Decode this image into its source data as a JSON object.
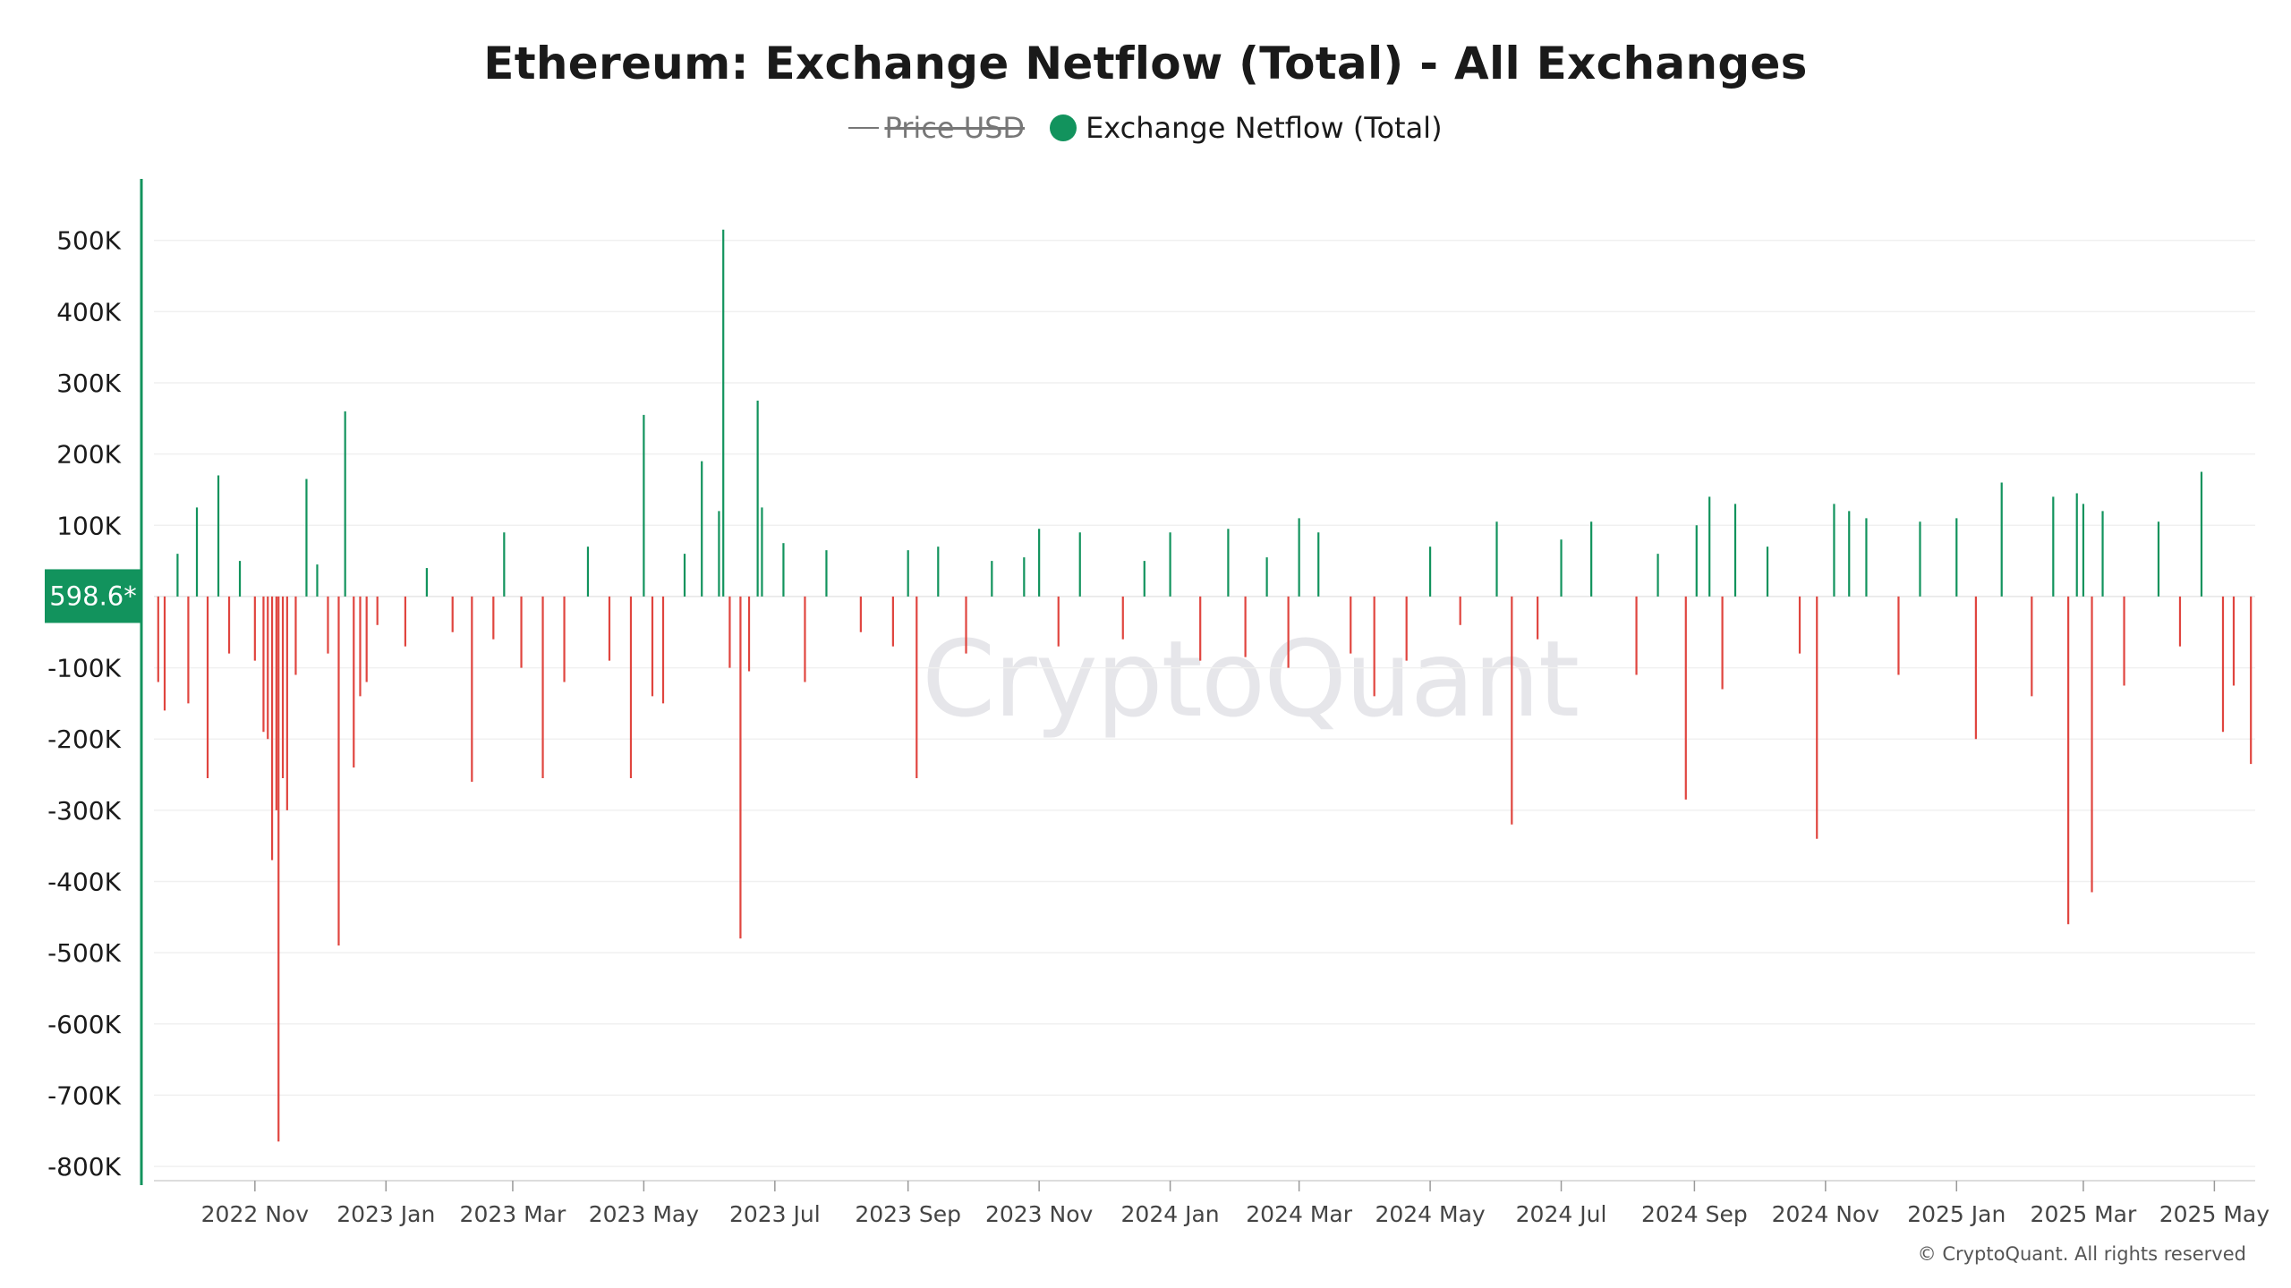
{
  "title": "Ethereum: Exchange Netflow (Total) - All Exchanges",
  "legend": {
    "price_label": "Price USD",
    "netflow_label": "Exchange Netflow (Total)"
  },
  "watermark": "CryptoQuant",
  "copyright": "© CryptoQuant. All rights reserved",
  "colors": {
    "inflow": "#12935d",
    "outflow": "#e0453f",
    "axis": "#12935d"
  },
  "chart_data": {
    "type": "bar",
    "ylim": [
      -820000,
      580000
    ],
    "y_ticks": [
      {
        "value": 500000,
        "label": "500K"
      },
      {
        "value": 400000,
        "label": "400K"
      },
      {
        "value": 300000,
        "label": "300K"
      },
      {
        "value": 200000,
        "label": "200K"
      },
      {
        "value": 100000,
        "label": "100K"
      },
      {
        "value": -100000,
        "label": "-100K"
      },
      {
        "value": -200000,
        "label": "-200K"
      },
      {
        "value": -300000,
        "label": "-300K"
      },
      {
        "value": -400000,
        "label": "-400K"
      },
      {
        "value": -500000,
        "label": "-500K"
      },
      {
        "value": -600000,
        "label": "-600K"
      },
      {
        "value": -700000,
        "label": "-700K"
      },
      {
        "value": -800000,
        "label": "-800K"
      }
    ],
    "x_range": [
      "2022-09-15",
      "2025-05-20"
    ],
    "x_ticks": [
      {
        "date": "2022-11-01",
        "label": "2022 Nov"
      },
      {
        "date": "2023-01-01",
        "label": "2023 Jan"
      },
      {
        "date": "2023-03-01",
        "label": "2023 Mar"
      },
      {
        "date": "2023-05-01",
        "label": "2023 May"
      },
      {
        "date": "2023-07-01",
        "label": "2023 Jul"
      },
      {
        "date": "2023-09-01",
        "label": "2023 Sep"
      },
      {
        "date": "2023-11-01",
        "label": "2023 Nov"
      },
      {
        "date": "2024-01-01",
        "label": "2024 Jan"
      },
      {
        "date": "2024-03-01",
        "label": "2024 Mar"
      },
      {
        "date": "2024-05-01",
        "label": "2024 May"
      },
      {
        "date": "2024-07-01",
        "label": "2024 Jul"
      },
      {
        "date": "2024-09-01",
        "label": "2024 Sep"
      },
      {
        "date": "2024-11-01",
        "label": "2024 Nov"
      },
      {
        "date": "2025-01-01",
        "label": "2025 Jan"
      },
      {
        "date": "2025-03-01",
        "label": "2025 Mar"
      },
      {
        "date": "2025-05-01",
        "label": "2025 May"
      }
    ],
    "current_value_label": "598.6*",
    "current_value": 598.6,
    "series": [
      {
        "name": "Exchange Netflow (Total)",
        "points": [
          [
            "2022-09-17",
            -120000
          ],
          [
            "2022-09-20",
            -160000
          ],
          [
            "2022-09-26",
            60000
          ],
          [
            "2022-10-01",
            -150000
          ],
          [
            "2022-10-05",
            125000
          ],
          [
            "2022-10-10",
            -255000
          ],
          [
            "2022-10-15",
            170000
          ],
          [
            "2022-10-20",
            -80000
          ],
          [
            "2022-10-25",
            50000
          ],
          [
            "2022-11-01",
            -90000
          ],
          [
            "2022-11-05",
            -190000
          ],
          [
            "2022-11-07",
            -200000
          ],
          [
            "2022-11-09",
            -370000
          ],
          [
            "2022-11-11",
            -300000
          ],
          [
            "2022-11-12",
            -765000
          ],
          [
            "2022-11-14",
            -255000
          ],
          [
            "2022-11-16",
            -300000
          ],
          [
            "2022-11-20",
            -110000
          ],
          [
            "2022-11-25",
            165000
          ],
          [
            "2022-11-30",
            45000
          ],
          [
            "2022-12-05",
            -80000
          ],
          [
            "2022-12-10",
            -490000
          ],
          [
            "2022-12-13",
            260000
          ],
          [
            "2022-12-17",
            -240000
          ],
          [
            "2022-12-20",
            -140000
          ],
          [
            "2022-12-23",
            -120000
          ],
          [
            "2022-12-28",
            -40000
          ],
          [
            "2023-01-10",
            -70000
          ],
          [
            "2023-01-20",
            40000
          ],
          [
            "2023-02-01",
            -50000
          ],
          [
            "2023-02-10",
            -260000
          ],
          [
            "2023-02-20",
            -60000
          ],
          [
            "2023-02-25",
            90000
          ],
          [
            "2023-03-05",
            -100000
          ],
          [
            "2023-03-15",
            -255000
          ],
          [
            "2023-03-25",
            -120000
          ],
          [
            "2023-04-05",
            70000
          ],
          [
            "2023-04-15",
            -90000
          ],
          [
            "2023-04-25",
            -255000
          ],
          [
            "2023-05-01",
            255000
          ],
          [
            "2023-05-05",
            -140000
          ],
          [
            "2023-05-10",
            -150000
          ],
          [
            "2023-05-20",
            60000
          ],
          [
            "2023-05-28",
            190000
          ],
          [
            "2023-06-05",
            120000
          ],
          [
            "2023-06-07",
            515000
          ],
          [
            "2023-06-10",
            -100000
          ],
          [
            "2023-06-15",
            -480000
          ],
          [
            "2023-06-19",
            -105000
          ],
          [
            "2023-06-23",
            275000
          ],
          [
            "2023-06-25",
            125000
          ],
          [
            "2023-07-05",
            75000
          ],
          [
            "2023-07-15",
            -120000
          ],
          [
            "2023-07-25",
            65000
          ],
          [
            "2023-08-10",
            -50000
          ],
          [
            "2023-08-25",
            -70000
          ],
          [
            "2023-09-01",
            65000
          ],
          [
            "2023-09-05",
            -255000
          ],
          [
            "2023-09-15",
            70000
          ],
          [
            "2023-09-28",
            -80000
          ],
          [
            "2023-10-10",
            50000
          ],
          [
            "2023-10-25",
            55000
          ],
          [
            "2023-11-01",
            95000
          ],
          [
            "2023-11-10",
            -70000
          ],
          [
            "2023-11-20",
            90000
          ],
          [
            "2023-12-10",
            -60000
          ],
          [
            "2023-12-20",
            50000
          ],
          [
            "2024-01-01",
            90000
          ],
          [
            "2024-01-15",
            -90000
          ],
          [
            "2024-01-28",
            95000
          ],
          [
            "2024-02-05",
            -85000
          ],
          [
            "2024-02-15",
            55000
          ],
          [
            "2024-02-25",
            -100000
          ],
          [
            "2024-03-01",
            110000
          ],
          [
            "2024-03-10",
            90000
          ],
          [
            "2024-03-25",
            -80000
          ],
          [
            "2024-04-05",
            -140000
          ],
          [
            "2024-04-20",
            -90000
          ],
          [
            "2024-05-01",
            70000
          ],
          [
            "2024-05-15",
            -40000
          ],
          [
            "2024-06-01",
            105000
          ],
          [
            "2024-06-08",
            -320000
          ],
          [
            "2024-06-20",
            -60000
          ],
          [
            "2024-07-01",
            80000
          ],
          [
            "2024-07-15",
            105000
          ],
          [
            "2024-08-05",
            -110000
          ],
          [
            "2024-08-15",
            60000
          ],
          [
            "2024-08-28",
            -285000
          ],
          [
            "2024-09-02",
            100000
          ],
          [
            "2024-09-08",
            140000
          ],
          [
            "2024-09-14",
            -130000
          ],
          [
            "2024-09-20",
            130000
          ],
          [
            "2024-10-05",
            70000
          ],
          [
            "2024-10-20",
            -80000
          ],
          [
            "2024-10-28",
            -340000
          ],
          [
            "2024-11-05",
            130000
          ],
          [
            "2024-11-12",
            120000
          ],
          [
            "2024-11-20",
            110000
          ],
          [
            "2024-12-05",
            -110000
          ],
          [
            "2024-12-15",
            105000
          ],
          [
            "2025-01-01",
            110000
          ],
          [
            "2025-01-10",
            -200000
          ],
          [
            "2025-01-22",
            160000
          ],
          [
            "2025-02-05",
            -140000
          ],
          [
            "2025-02-15",
            140000
          ],
          [
            "2025-02-22",
            -460000
          ],
          [
            "2025-02-26",
            145000
          ],
          [
            "2025-03-01",
            130000
          ],
          [
            "2025-03-05",
            -415000
          ],
          [
            "2025-03-10",
            120000
          ],
          [
            "2025-03-20",
            -125000
          ],
          [
            "2025-04-05",
            105000
          ],
          [
            "2025-04-15",
            -70000
          ],
          [
            "2025-04-25",
            175000
          ],
          [
            "2025-05-05",
            -190000
          ],
          [
            "2025-05-10",
            -125000
          ],
          [
            "2025-05-18",
            -235000
          ]
        ]
      }
    ]
  }
}
